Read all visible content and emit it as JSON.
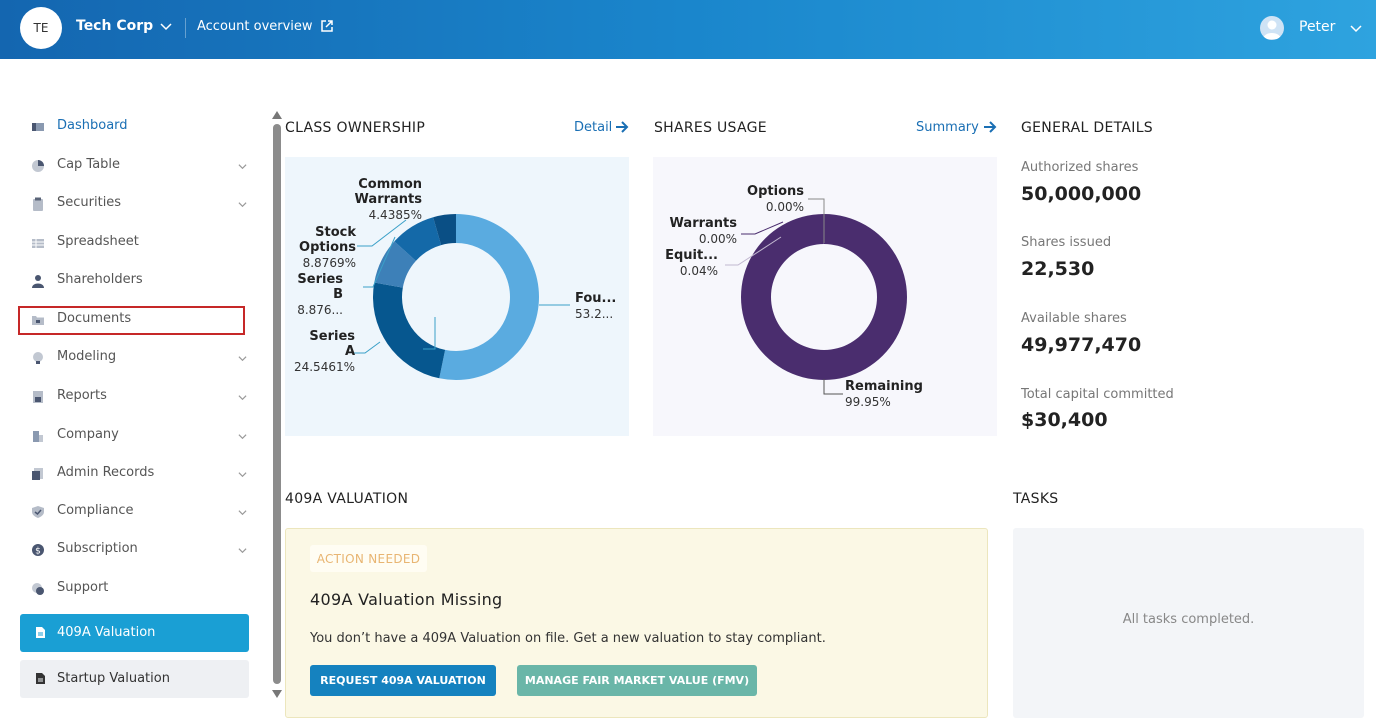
{
  "header": {
    "org_initials": "TE",
    "org_name": "Tech Corp",
    "account_link": "Account overview",
    "user_name": "Peter",
    "colors": {
      "gradient_start": "#1466b0",
      "gradient_end": "#2ea3df"
    }
  },
  "sidebar": {
    "items": [
      {
        "label": "Dashboard",
        "icon": "dashboard-icon",
        "expandable": false,
        "active": true
      },
      {
        "label": "Cap Table",
        "icon": "pie-chart-icon",
        "expandable": true
      },
      {
        "label": "Securities",
        "icon": "clipboard-icon",
        "expandable": true
      },
      {
        "label": "Spreadsheet",
        "icon": "spreadsheet-icon",
        "expandable": false
      },
      {
        "label": "Shareholders",
        "icon": "person-icon",
        "expandable": false
      },
      {
        "label": "Documents",
        "icon": "folder-icon",
        "expandable": false,
        "highlighted": true
      },
      {
        "label": "Modeling",
        "icon": "lightbulb-icon",
        "expandable": true
      },
      {
        "label": "Reports",
        "icon": "report-icon",
        "expandable": true
      },
      {
        "label": "Company",
        "icon": "building-icon",
        "expandable": true
      },
      {
        "label": "Admin Records",
        "icon": "records-icon",
        "expandable": true
      },
      {
        "label": "Compliance",
        "icon": "shield-icon",
        "expandable": true
      },
      {
        "label": "Subscription",
        "icon": "dollar-icon",
        "expandable": true
      },
      {
        "label": "Support",
        "icon": "support-icon",
        "expandable": false
      }
    ],
    "buttons": [
      {
        "label": "409A Valuation",
        "icon": "document-icon",
        "active": true
      },
      {
        "label": "Startup Valuation",
        "icon": "document-icon",
        "active": false
      }
    ]
  },
  "class_ownership": {
    "title": "CLASS OWNERSHIP",
    "link": "Detail",
    "labels": {
      "founders": {
        "name": "Fou...",
        "value": "53.2..."
      },
      "series_a": {
        "name_1": "Series",
        "name_2": "A",
        "value": "24.5461%"
      },
      "series_b": {
        "name_1": "Series",
        "name_2": "B",
        "value": "8.876..."
      },
      "stock_options": {
        "name_1": "Stock",
        "name_2": "Options",
        "value": "8.8769%"
      },
      "common_warrants": {
        "name_1": "Common",
        "name_2": "Warrants",
        "value": "4.4385%"
      }
    }
  },
  "shares_usage": {
    "title": "SHARES USAGE",
    "link": "Summary",
    "labels": {
      "options": {
        "name": "Options",
        "value": "0.00%"
      },
      "warrants": {
        "name": "Warrants",
        "value": "0.00%"
      },
      "equity": {
        "name": "Equit...",
        "value": "0.04%"
      },
      "remaining": {
        "name": "Remaining",
        "value": "99.95%"
      }
    }
  },
  "chart_data": [
    {
      "type": "pie",
      "donut": true,
      "categories": [
        "Founders",
        "Series A",
        "Series B",
        "Stock Options",
        "Common Warrants"
      ],
      "values": [
        53.2,
        24.5461,
        8.876,
        8.8769,
        4.4385
      ],
      "colors": [
        "#5aabe0",
        "#06578f",
        "#3d80b8",
        "#1469a8",
        "#0a4f85"
      ]
    },
    {
      "type": "pie",
      "donut": true,
      "categories": [
        "Remaining",
        "Equity",
        "Warrants",
        "Options"
      ],
      "values": [
        99.95,
        0.04,
        0.0,
        0.0
      ],
      "colors": [
        "#4a2d6e",
        "#8e7aa8",
        "#4a2d6e",
        "#4a2d6e"
      ]
    }
  ],
  "general_details": {
    "title": "GENERAL DETAILS",
    "items": [
      {
        "label": "Authorized shares",
        "value": "50,000,000"
      },
      {
        "label": "Shares issued",
        "value": "22,530"
      },
      {
        "label": "Available shares",
        "value": "49,977,470"
      },
      {
        "label": "Total capital committed",
        "value": "$30,400"
      }
    ]
  },
  "valuation": {
    "title": "409A VALUATION",
    "badge": "ACTION NEEDED",
    "card_title": "409A Valuation Missing",
    "description": "You don’t have a 409A Valuation on file. Get a new valuation to stay compliant.",
    "primary_button": "REQUEST 409A VALUATION",
    "secondary_button": "MANAGE FAIR MARKET VALUE (FMV)"
  },
  "tasks": {
    "title": "TASKS",
    "empty_text": "All tasks completed."
  }
}
